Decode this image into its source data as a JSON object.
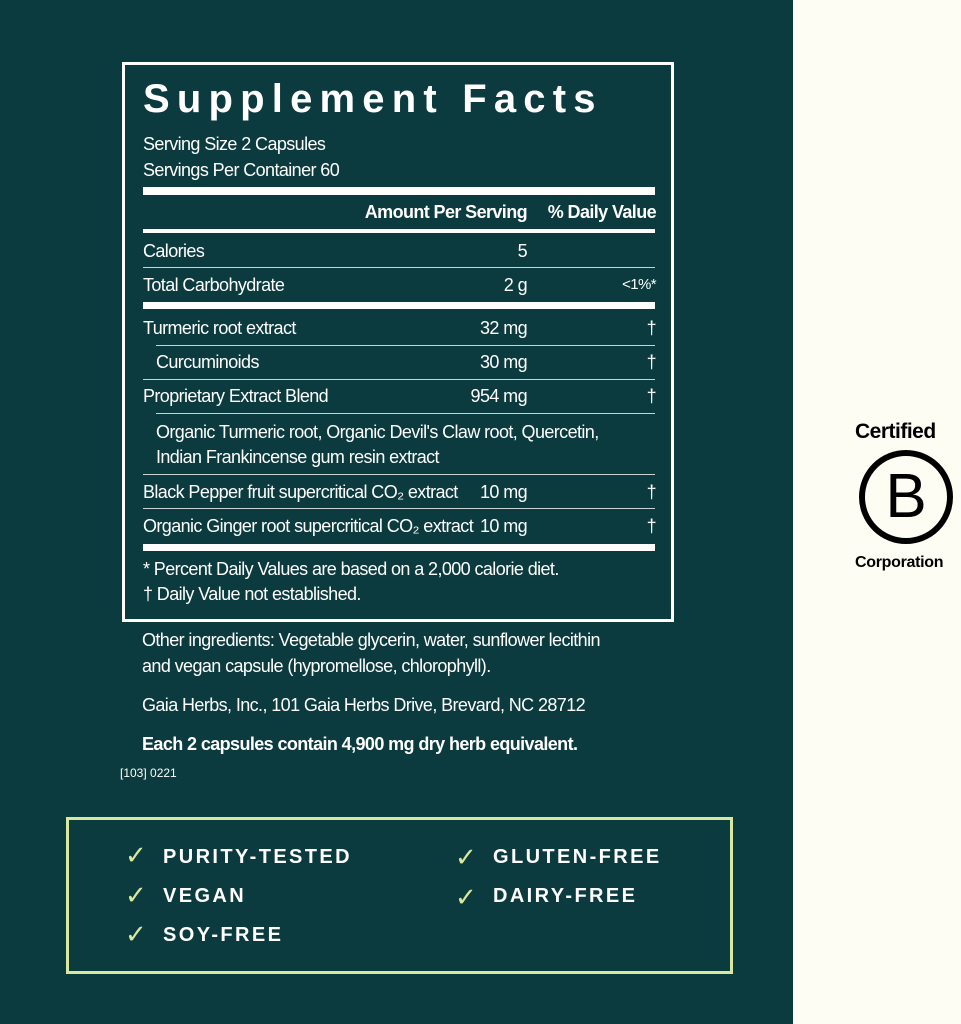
{
  "facts": {
    "title": "Supplement Facts",
    "serving_size": "Serving Size 2 Capsules",
    "servings_per_container": "Servings Per Container 60",
    "header_amount": "Amount  Per Serving",
    "header_dv": "% Daily Value",
    "rows": [
      {
        "name": "Calories",
        "amount": "5",
        "dv": ""
      },
      {
        "name": "Total Carbohydrate",
        "amount": "2 g",
        "dv": "<1%*"
      },
      {
        "name": "Turmeric root extract",
        "amount": "32 mg",
        "dv": "†"
      },
      {
        "name": "Curcuminoids",
        "amount": "30 mg",
        "dv": "†"
      },
      {
        "name": "Proprietary Extract Blend",
        "amount": "954 mg",
        "dv": "†"
      },
      {
        "name": "Black Pepper fruit supercritical CO₂ extract",
        "amount": "10 mg",
        "dv": "†"
      },
      {
        "name": "Organic Ginger root supercritical CO₂ extract",
        "amount": "10 mg",
        "dv": "†"
      }
    ],
    "blend_line1": "Organic Turmeric root, Organic Devil's Claw root, Quercetin,",
    "blend_line2": "Indian Frankincense gum resin extract",
    "footnote1": "* Percent Daily Values are based on a 2,000 calorie diet.",
    "footnote2": "† Daily Value not established."
  },
  "other_ingredients_1": "Other ingredients: Vegetable glycerin, water, sunflower lecithin",
  "other_ingredients_2": "and vegan capsule (hypromellose, chlorophyll).",
  "address": "Gaia Herbs, Inc., 101 Gaia Herbs Drive, Brevard, NC 28712",
  "equivalent": "Each 2 capsules contain  4,900 mg dry herb equivalent.",
  "code": "[103] 0221",
  "claims": [
    "PURITY-TESTED",
    "VEGAN",
    "SOY-FREE",
    "GLUTEN-FREE",
    "DAIRY-FREE"
  ],
  "bcorp": {
    "top": "Certified",
    "letter": "B",
    "bottom": "Corporation"
  },
  "colors": {
    "panel": "#0b3a3f",
    "accent": "#d7e8a0",
    "background": "#fefdf3"
  }
}
